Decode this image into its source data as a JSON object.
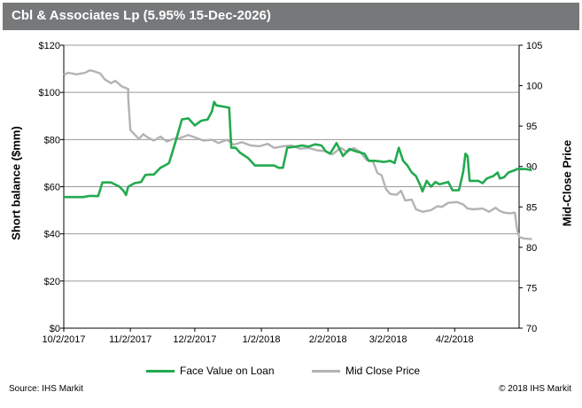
{
  "header": {
    "title": "Cbl & Associates Lp (5.95% 15-Dec-2026)"
  },
  "footer": {
    "source": "Source: IHS Markit",
    "copyright": "© 2018 IHS Markit"
  },
  "colors": {
    "title_bar": "#76787a",
    "face_value": "#22aa4f",
    "mid_close": "#b3b3b3",
    "grid": "#9a9a9a"
  },
  "chart_data": {
    "type": "line",
    "title": "Cbl & Associates Lp (5.95% 15-Dec-2026)",
    "xlabel": "",
    "ylabel_left": "Short balance ($mm)",
    "ylabel_right": "Mid-Close Price",
    "x_ticks": [
      "10/2/2017",
      "11/2/2017",
      "12/2/2017",
      "1/2/2018",
      "2/2/2018",
      "3/2/2018",
      "4/2/2018"
    ],
    "y_left_ticks": [
      "$0",
      "$20",
      "$40",
      "$60",
      "$80",
      "$100",
      "$120"
    ],
    "y_right_ticks": [
      "70",
      "75",
      "80",
      "85",
      "90",
      "95",
      "100",
      "105"
    ],
    "ylim_left": [
      0,
      120
    ],
    "ylim_right": [
      70,
      105
    ],
    "xlim": [
      "2017-10-02",
      "2018-05-02"
    ],
    "grid": true,
    "legend_position": "bottom",
    "series": [
      {
        "name": "Face Value on Loan",
        "axis": "left",
        "points": [
          [
            "2017-10-02",
            55.6
          ],
          [
            "2017-10-11",
            55.6
          ],
          [
            "2017-10-14",
            56.1
          ],
          [
            "2017-10-18",
            56.0
          ],
          [
            "2017-10-20",
            61.8
          ],
          [
            "2017-10-24",
            61.8
          ],
          [
            "2017-10-28",
            60.0
          ],
          [
            "2017-10-30",
            58.0
          ],
          [
            "2017-10-31",
            56.5
          ],
          [
            "2017-11-01",
            60.0
          ],
          [
            "2017-11-04",
            61.5
          ],
          [
            "2017-11-07",
            62.0
          ],
          [
            "2017-11-09",
            65.0
          ],
          [
            "2017-11-13",
            65.2
          ],
          [
            "2017-11-16",
            68.0
          ],
          [
            "2017-11-18",
            69.0
          ],
          [
            "2017-11-20",
            70.0
          ],
          [
            "2017-11-23",
            79.0
          ],
          [
            "2017-11-26",
            88.5
          ],
          [
            "2017-11-29",
            89.0
          ],
          [
            "2017-12-02",
            86.0
          ],
          [
            "2017-12-05",
            88.0
          ],
          [
            "2017-12-08",
            88.5
          ],
          [
            "2017-12-10",
            92.0
          ],
          [
            "2017-12-11",
            96.0
          ],
          [
            "2017-12-12",
            94.5
          ],
          [
            "2017-12-18",
            93.5
          ],
          [
            "2017-12-19",
            76.5
          ],
          [
            "2017-12-21",
            76.5
          ],
          [
            "2017-12-23",
            74.5
          ],
          [
            "2017-12-27",
            72.0
          ],
          [
            "2017-12-30",
            69.0
          ],
          [
            "2018-01-08",
            69.0
          ],
          [
            "2018-01-10",
            68.0
          ],
          [
            "2018-01-12",
            68.0
          ],
          [
            "2018-01-14",
            76.5
          ],
          [
            "2018-01-18",
            77.0
          ],
          [
            "2018-01-21",
            77.5
          ],
          [
            "2018-01-24",
            77.0
          ],
          [
            "2018-01-27",
            78.0
          ],
          [
            "2018-01-30",
            77.5
          ],
          [
            "2018-02-01",
            75.0
          ],
          [
            "2018-02-03",
            74.0
          ],
          [
            "2018-02-06",
            78.5
          ],
          [
            "2018-02-09",
            73.0
          ],
          [
            "2018-02-12",
            76.0
          ],
          [
            "2018-02-15",
            75.0
          ],
          [
            "2018-02-19",
            74.0
          ],
          [
            "2018-02-21",
            71.0
          ],
          [
            "2018-02-24",
            71.0
          ],
          [
            "2018-02-28",
            70.5
          ],
          [
            "2018-03-03",
            71.0
          ],
          [
            "2018-03-05",
            70.0
          ],
          [
            "2018-03-07",
            76.5
          ],
          [
            "2018-03-09",
            71.0
          ],
          [
            "2018-03-11",
            69.0
          ],
          [
            "2018-03-13",
            66.0
          ],
          [
            "2018-03-15",
            64.5
          ],
          [
            "2018-03-17",
            60.5
          ],
          [
            "2018-03-18",
            58.0
          ],
          [
            "2018-03-20",
            62.5
          ],
          [
            "2018-03-22",
            60.0
          ],
          [
            "2018-03-24",
            62.0
          ],
          [
            "2018-03-26",
            61.0
          ],
          [
            "2018-03-28",
            61.5
          ],
          [
            "2018-03-30",
            62.0
          ],
          [
            "2018-04-01",
            58.5
          ],
          [
            "2018-04-04",
            58.5
          ],
          [
            "2018-04-06",
            66.5
          ],
          [
            "2018-04-07",
            74.0
          ],
          [
            "2018-04-08",
            73.0
          ],
          [
            "2018-04-09",
            62.5
          ],
          [
            "2018-04-13",
            62.5
          ],
          [
            "2018-04-15",
            61.5
          ],
          [
            "2018-04-17",
            63.5
          ],
          [
            "2018-04-20",
            64.5
          ],
          [
            "2018-04-22",
            66.0
          ],
          [
            "2018-04-23",
            63.5
          ],
          [
            "2018-04-25",
            64.0
          ],
          [
            "2018-04-27",
            66.0
          ],
          [
            "2018-04-30",
            67.0
          ],
          [
            "2018-05-01",
            67.5
          ],
          [
            "2018-05-05",
            67.5
          ],
          [
            "2018-05-08",
            67.0
          ]
        ]
      },
      {
        "name": "Mid Close Price",
        "axis": "right",
        "points": [
          [
            "2017-10-02",
            101.3
          ],
          [
            "2017-10-04",
            101.6
          ],
          [
            "2017-10-08",
            101.4
          ],
          [
            "2017-10-12",
            101.6
          ],
          [
            "2017-10-14",
            101.9
          ],
          [
            "2017-10-16",
            101.8
          ],
          [
            "2017-10-19",
            101.5
          ],
          [
            "2017-10-21",
            100.8
          ],
          [
            "2017-10-24",
            100.3
          ],
          [
            "2017-10-26",
            100.6
          ],
          [
            "2017-10-29",
            99.9
          ],
          [
            "2017-11-01",
            99.6
          ],
          [
            "2017-11-01",
            98.5
          ],
          [
            "2017-11-02",
            94.5
          ],
          [
            "2017-11-06",
            93.4
          ],
          [
            "2017-11-08",
            94.0
          ],
          [
            "2017-11-10",
            93.6
          ],
          [
            "2017-11-13",
            93.2
          ],
          [
            "2017-11-16",
            93.7
          ],
          [
            "2017-11-19",
            93.1
          ],
          [
            "2017-11-22",
            93.4
          ],
          [
            "2017-11-25",
            93.5
          ],
          [
            "2017-11-29",
            93.9
          ],
          [
            "2017-12-02",
            93.6
          ],
          [
            "2017-12-06",
            93.2
          ],
          [
            "2017-12-10",
            93.3
          ],
          [
            "2017-12-13",
            92.9
          ],
          [
            "2017-12-17",
            93.3
          ],
          [
            "2017-12-20",
            92.7
          ],
          [
            "2017-12-24",
            93.0
          ],
          [
            "2017-12-28",
            92.6
          ],
          [
            "2018-01-01",
            92.5
          ],
          [
            "2018-01-05",
            92.8
          ],
          [
            "2018-01-08",
            92.3
          ],
          [
            "2018-01-12",
            92.5
          ],
          [
            "2018-01-16",
            92.6
          ],
          [
            "2018-01-20",
            92.2
          ],
          [
            "2018-01-24",
            92.3
          ],
          [
            "2018-01-28",
            92.0
          ],
          [
            "2018-02-01",
            91.9
          ],
          [
            "2018-02-04",
            91.5
          ],
          [
            "2018-02-08",
            92.3
          ],
          [
            "2018-02-11",
            91.8
          ],
          [
            "2018-02-14",
            92.3
          ],
          [
            "2018-02-17",
            91.8
          ],
          [
            "2018-02-20",
            90.8
          ],
          [
            "2018-02-23",
            90.6
          ],
          [
            "2018-02-25",
            89.2
          ],
          [
            "2018-02-27",
            88.9
          ],
          [
            "2018-03-01",
            87.2
          ],
          [
            "2018-03-03",
            86.6
          ],
          [
            "2018-03-06",
            86.5
          ],
          [
            "2018-03-08",
            87.0
          ],
          [
            "2018-03-10",
            85.8
          ],
          [
            "2018-03-13",
            85.9
          ],
          [
            "2018-03-15",
            84.7
          ],
          [
            "2018-03-18",
            84.4
          ],
          [
            "2018-03-22",
            84.6
          ],
          [
            "2018-03-25",
            85.1
          ],
          [
            "2018-03-27",
            85.0
          ],
          [
            "2018-03-30",
            85.5
          ],
          [
            "2018-04-03",
            85.6
          ],
          [
            "2018-04-06",
            85.3
          ],
          [
            "2018-04-08",
            84.8
          ],
          [
            "2018-04-11",
            84.7
          ],
          [
            "2018-04-15",
            84.8
          ],
          [
            "2018-04-18",
            84.4
          ],
          [
            "2018-04-21",
            84.9
          ],
          [
            "2018-04-23",
            84.5
          ],
          [
            "2018-04-25",
            84.3
          ],
          [
            "2018-04-28",
            84.2
          ],
          [
            "2018-04-30",
            84.3
          ],
          [
            "2018-05-01",
            82.3
          ],
          [
            "2018-05-02",
            81.3
          ],
          [
            "2018-05-04",
            81.1
          ],
          [
            "2018-05-08",
            81.0
          ]
        ]
      }
    ]
  }
}
